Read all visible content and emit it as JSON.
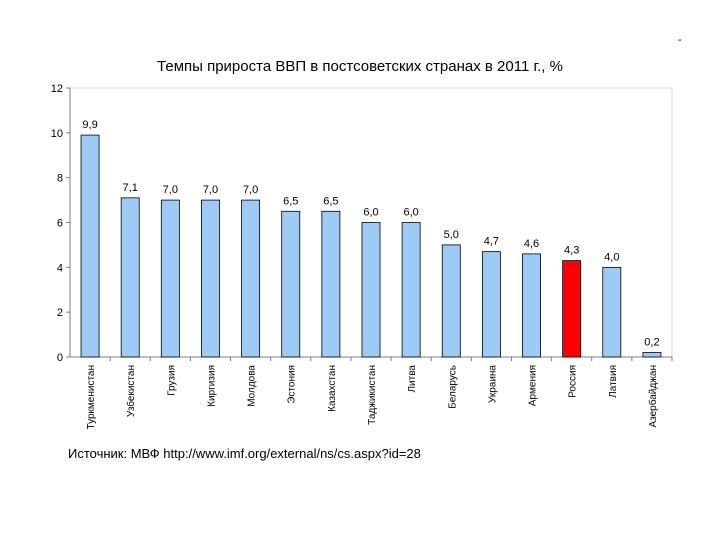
{
  "corner_mark": "-",
  "source_note": "Источник: МВФ http://www.imf.org/external/ns/cs.aspx?id=28",
  "colors": {
    "bar": "#9ecbf5",
    "highlight": "#ff0000",
    "bar_outline": "#000000",
    "axis": "#7f7f7f"
  },
  "chart_data": {
    "type": "bar",
    "title": "Темпы прироста ВВП в постсоветских странах в 2011 г., %",
    "xlabel": "",
    "ylabel": "",
    "ylim": [
      0,
      12
    ],
    "yticks": [
      "0",
      "2",
      "4",
      "6",
      "8",
      "10",
      "12"
    ],
    "grid": false,
    "legend": "none",
    "categories": [
      "Туркменистан",
      "Узбекистан",
      "Грузия",
      "Киргизия",
      "Молдова",
      "Эстония",
      "Казахстан",
      "Таджикистан",
      "Литва",
      "Беларусь",
      "Украина",
      "Армения",
      "Россия",
      "Латвия",
      "Азербайджан"
    ],
    "values": [
      9.9,
      7.1,
      7.0,
      7.0,
      7.0,
      6.5,
      6.5,
      6.0,
      6.0,
      5.0,
      4.7,
      4.6,
      4.3,
      4.0,
      0.2
    ],
    "value_labels": [
      "9,9",
      "7,1",
      "7,0",
      "7,0",
      "7,0",
      "6,5",
      "6,5",
      "6,0",
      "6,0",
      "5,0",
      "4,7",
      "4,6",
      "4,3",
      "4,0",
      "0,2"
    ],
    "highlight_category": "Россия"
  }
}
